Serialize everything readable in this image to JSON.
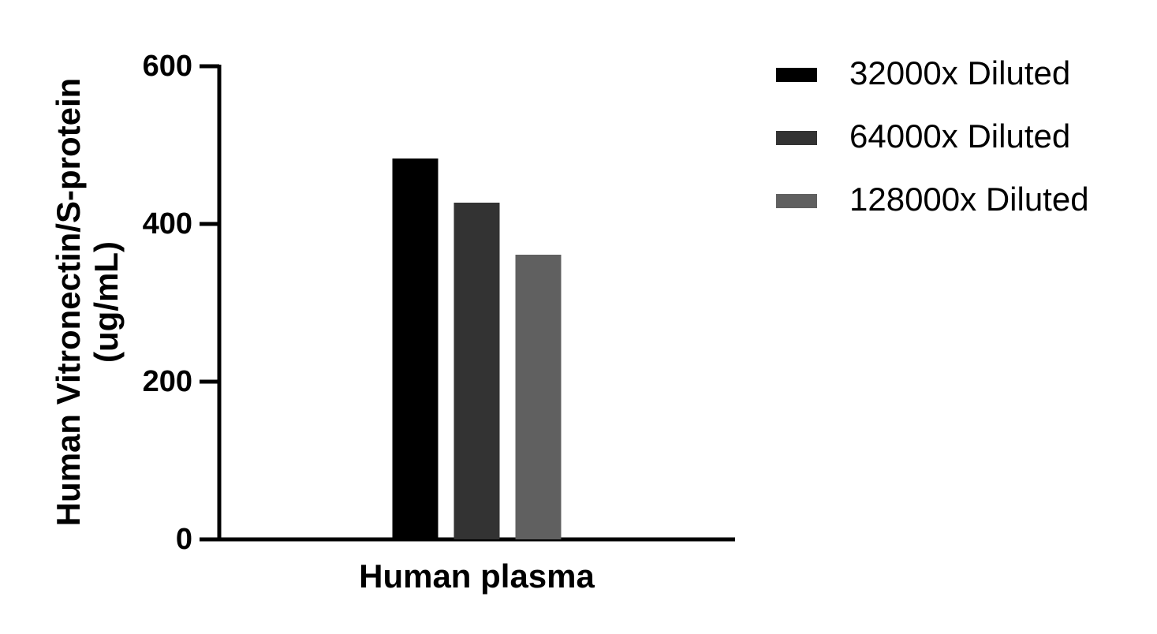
{
  "chart_data": {
    "type": "bar",
    "ylabel": [
      "Human Vitronectin/S-protein",
      "(ug/mL)"
    ],
    "categories": [
      "Human plasma"
    ],
    "series": [
      {
        "name": "32000x Diluted",
        "color": "#000000",
        "values": [
          483
        ]
      },
      {
        "name": "64000x Diluted",
        "color": "#333333",
        "values": [
          427
        ]
      },
      {
        "name": "128000x Diluted",
        "color": "#606060",
        "values": [
          361
        ]
      }
    ],
    "ylim": [
      0,
      600
    ],
    "yticks": [
      0,
      200,
      400,
      600
    ],
    "legend": "right"
  }
}
